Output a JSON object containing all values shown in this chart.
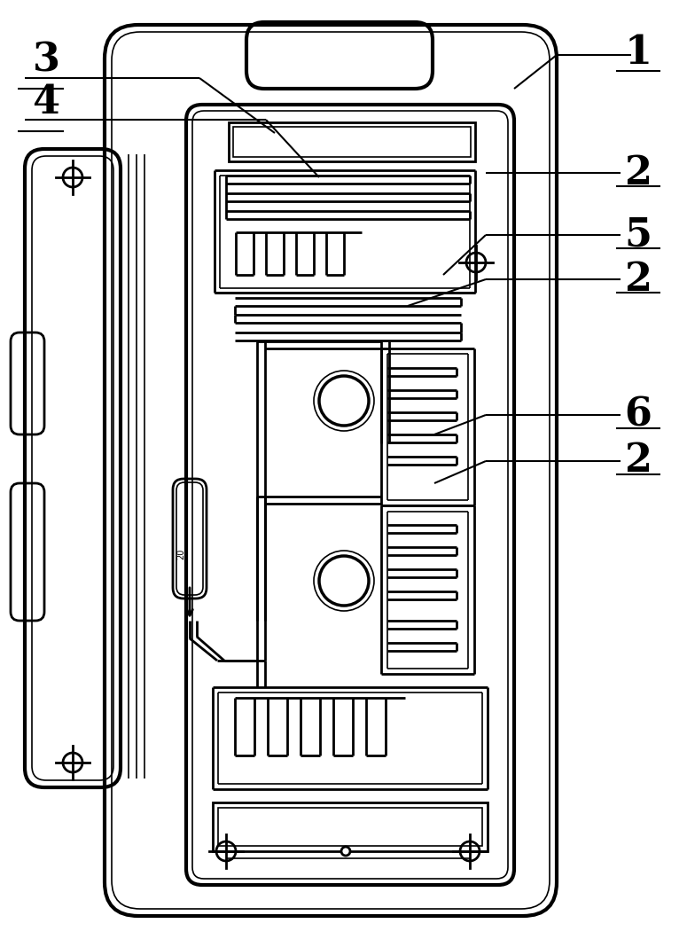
{
  "bg_color": "#ffffff",
  "line_color": "#000000",
  "fig_width": 7.75,
  "fig_height": 10.59,
  "label_fontsize": 32,
  "lw_thick": 3.0,
  "lw_main": 2.0,
  "lw_thin": 1.2
}
